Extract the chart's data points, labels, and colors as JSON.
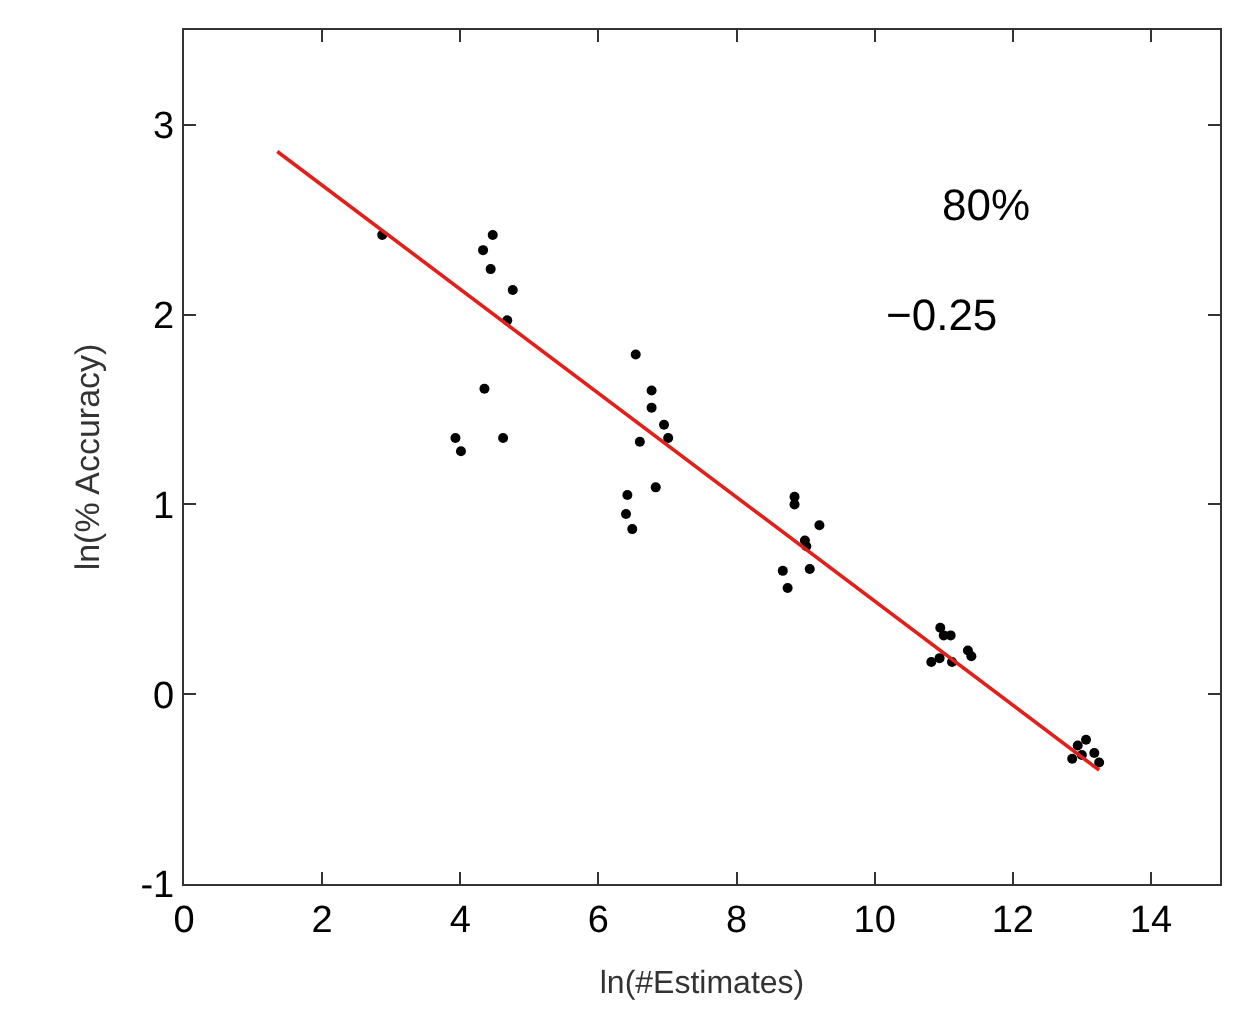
{
  "chart_data": {
    "type": "scatter",
    "xlabel": "ln(#Estimates)",
    "ylabel": "ln(% Accuracy)",
    "xlim": [
      0,
      15
    ],
    "ylim": [
      -1,
      3.5
    ],
    "xticks": [
      0,
      2,
      4,
      6,
      8,
      10,
      12,
      14
    ],
    "yticks": [
      -1,
      0,
      1,
      2,
      3
    ],
    "grid": false,
    "annotations": [
      "80%",
      "−0.25"
    ],
    "series": [
      {
        "marker": "circle",
        "color": "#000000",
        "x": [
          2.87,
          4.33,
          4.47,
          4.44,
          4.76,
          4.68,
          4.35,
          3.93,
          4.01,
          4.62,
          6.54,
          6.77,
          6.77,
          6.95,
          7.01,
          6.6,
          6.83,
          6.42,
          6.4,
          6.49,
          8.84,
          8.84,
          9.2,
          8.99,
          9.01,
          9.06,
          8.67,
          8.74,
          10.95,
          11.1,
          11.0,
          11.35,
          11.4,
          10.94,
          10.82,
          11.12,
          13.06,
          12.94,
          12.86,
          13.18,
          13.25,
          13.0
        ],
        "values": [
          2.42,
          2.34,
          2.42,
          2.24,
          2.13,
          1.97,
          1.61,
          1.35,
          1.28,
          1.35,
          1.79,
          1.6,
          1.51,
          1.42,
          1.35,
          1.33,
          1.09,
          1.05,
          0.95,
          0.87,
          1.04,
          1.0,
          0.89,
          0.81,
          0.78,
          0.66,
          0.65,
          0.56,
          0.35,
          0.31,
          0.31,
          0.23,
          0.2,
          0.19,
          0.17,
          0.17,
          -0.24,
          -0.27,
          -0.34,
          -0.31,
          -0.36,
          -0.32
        ]
      },
      {
        "type": "line",
        "marker": "none",
        "color": "#e0201b",
        "x": [
          1.35,
          13.25
        ],
        "values": [
          2.86,
          -0.4
        ]
      }
    ]
  }
}
